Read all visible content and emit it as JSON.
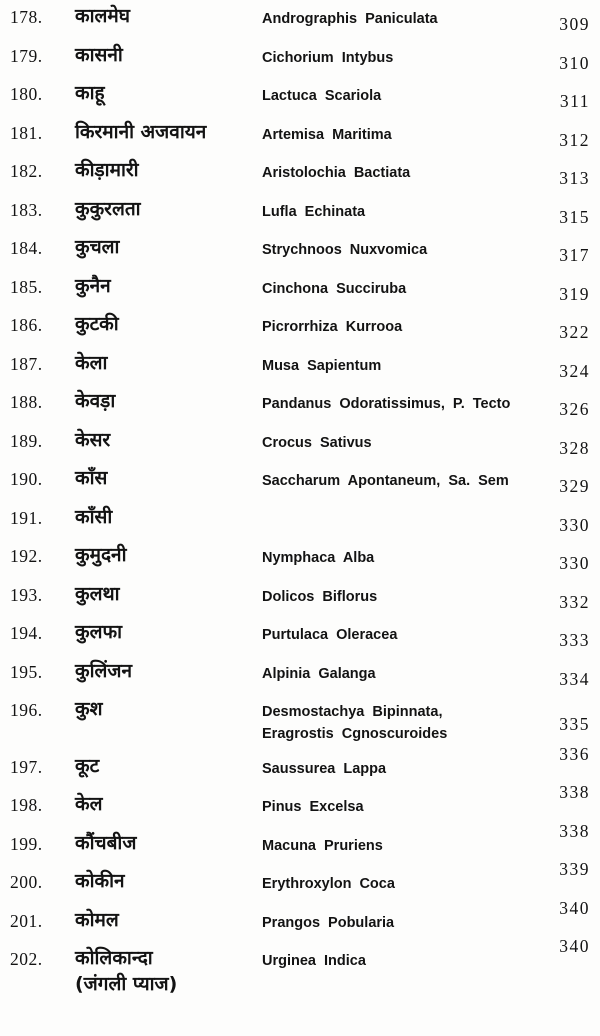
{
  "index": {
    "rows": [
      {
        "num": "178.",
        "hindi": "कालमेघ",
        "latin": "Andrographis Paniculata",
        "page_no": "309"
      },
      {
        "num": "179.",
        "hindi": "कासनी",
        "latin": "Cichorium Intybus",
        "page_no": "310"
      },
      {
        "num": "180.",
        "hindi": "काहू",
        "latin": "Lactuca Scariola",
        "page_no": "311"
      },
      {
        "num": "181.",
        "hindi": "किरमानी अजवायन",
        "latin": "Artemisa Maritima",
        "page_no": "312"
      },
      {
        "num": "182.",
        "hindi": "कीड़ामारी",
        "latin": "Aristolochia Bactiata",
        "page_no": "313"
      },
      {
        "num": "183.",
        "hindi": "कुकुरलता",
        "latin": "Lufla Echinata",
        "page_no": "315"
      },
      {
        "num": "184.",
        "hindi": "कुचला",
        "latin": "Strychnoos Nuxvomica",
        "page_no": "317"
      },
      {
        "num": "185.",
        "hindi": "कुनैन",
        "latin": "Cinchona Succiruba",
        "page_no": "319"
      },
      {
        "num": "186.",
        "hindi": "कुटकी",
        "latin": "Picrorrhiza Kurrooa",
        "page_no": "322"
      },
      {
        "num": "187.",
        "hindi": "केला",
        "latin": "Musa Sapientum",
        "page_no": "324"
      },
      {
        "num": "188.",
        "hindi": "केवड़ा",
        "latin": "Pandanus Odoratissimus, P. Tecto",
        "page_no": "326"
      },
      {
        "num": "189.",
        "hindi": "केसर",
        "latin": "Crocus Sativus",
        "page_no": "328"
      },
      {
        "num": "190.",
        "hindi": "काँस",
        "latin": "Saccharum Apontaneum, Sa. Sem",
        "page_no": "329"
      },
      {
        "num": "191.",
        "hindi": "काँसी",
        "latin": "",
        "page_no": "330"
      },
      {
        "num": "192.",
        "hindi": "कुमुदनी",
        "latin": "Nymphaca Alba",
        "page_no": "330"
      },
      {
        "num": "193.",
        "hindi": "कुलथा",
        "latin": "Dolicos Biflorus",
        "page_no": "332"
      },
      {
        "num": "194.",
        "hindi": "कुलफा",
        "latin": "Purtulaca Oleracea",
        "page_no": "333"
      },
      {
        "num": "195.",
        "hindi": "कुलिंजन",
        "latin": "Alpinia Galanga",
        "page_no": "334"
      },
      {
        "num": "196.",
        "hindi": "कुश",
        "latin": "Desmostachya Bipinnata,",
        "latin2": "Eragrostis Cgnoscuroides",
        "page_no": "335"
      },
      {
        "num": "197.",
        "hindi": "कूट",
        "latin": "Saussurea Lappa",
        "page_no": "336"
      },
      {
        "num": "198.",
        "hindi": "केल",
        "latin": "Pinus Excelsa",
        "page_no": "338"
      },
      {
        "num": "199.",
        "hindi": "कौंचबीज",
        "latin": "Macuna Pruriens",
        "page_no": "338"
      },
      {
        "num": "200.",
        "hindi": "कोकीन",
        "latin": "Erythroxylon Coca",
        "page_no": "339"
      },
      {
        "num": "201.",
        "hindi": "कोमल",
        "latin": "Prangos Pobularia",
        "page_no": "340"
      },
      {
        "num": "202.",
        "hindi": "कोलिकान्दा",
        "hindi2": "(जंगली प्याज)",
        "latin": "Urginea Indica",
        "page_no": "340"
      }
    ]
  },
  "colors": {
    "ink": "#131313",
    "paper": "#fdfdfc"
  }
}
